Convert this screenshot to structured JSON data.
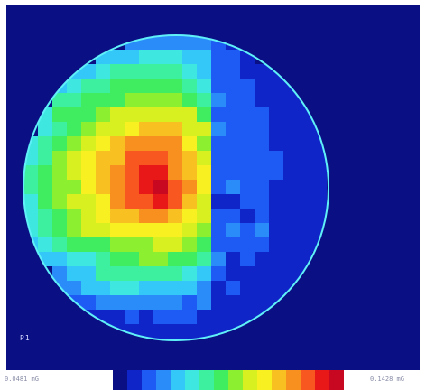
{
  "probe_label": "P1",
  "scale": {
    "min_label": "0.0481 mG",
    "max_label": "0.1428 mG"
  },
  "colors": {
    "background": "#0a0f84",
    "outline": "#5ff0f8",
    "palette": [
      "#0a0f84",
      "#1025c8",
      "#1e5af4",
      "#2a8cf8",
      "#34c8f8",
      "#3ee8e0",
      "#3cf0a0",
      "#40ec60",
      "#8cf030",
      "#d8f020",
      "#f8f020",
      "#f8c020",
      "#f89020",
      "#f85820",
      "#e81818",
      "#c80820"
    ]
  }
}
